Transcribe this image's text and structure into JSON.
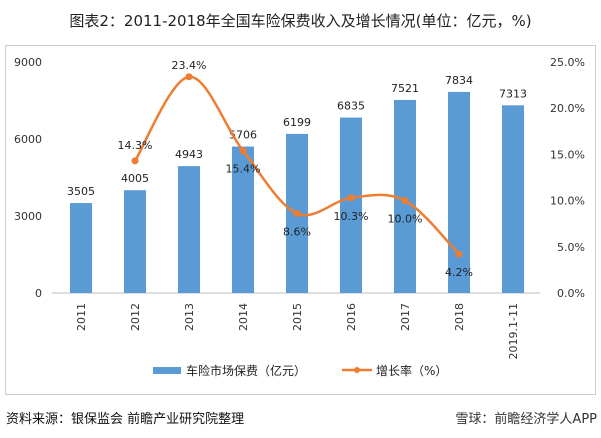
{
  "title": "图表2：2011-2018年全国车险保费收入及增长情况(单位：亿元，%)",
  "source": "资料来源：银保监会 前瞻产业研究院整理",
  "watermark": "雪球：前瞻经济学人APP",
  "chart_data": {
    "type": "bar+line",
    "categories": [
      "2011",
      "2012",
      "2013",
      "2014",
      "2015",
      "2016",
      "2017",
      "2018",
      "2019.1-11"
    ],
    "series": [
      {
        "name": "车险市场保费（亿元）",
        "type": "bar",
        "axis": "left",
        "color": "#5b9bd5",
        "values": [
          3505,
          4005,
          4943,
          5706,
          6199,
          6835,
          7521,
          7834,
          7313
        ],
        "labels": [
          "3505",
          "4005",
          "4943",
          "5706",
          "6199",
          "6835",
          "7521",
          "7834",
          "7313"
        ]
      },
      {
        "name": "增长率（%）",
        "type": "line",
        "axis": "right",
        "color": "#ed7d31",
        "values": [
          null,
          14.3,
          23.4,
          15.4,
          8.6,
          10.3,
          10.0,
          4.2,
          null
        ],
        "labels": [
          "",
          "14.3%",
          "23.4%",
          "15.4%",
          "8.6%",
          "10.3%",
          "10.0%",
          "4.2%",
          ""
        ]
      }
    ],
    "y_left": {
      "range": [
        0,
        9000
      ],
      "ticks": [
        "0",
        "3000",
        "6000",
        "9000"
      ]
    },
    "y_right": {
      "range": [
        0,
        25
      ],
      "ticks": [
        "0.0%",
        "5.0%",
        "10.0%",
        "15.0%",
        "20.0%",
        "25.0%"
      ]
    },
    "legend": "bottom",
    "grid": false
  }
}
